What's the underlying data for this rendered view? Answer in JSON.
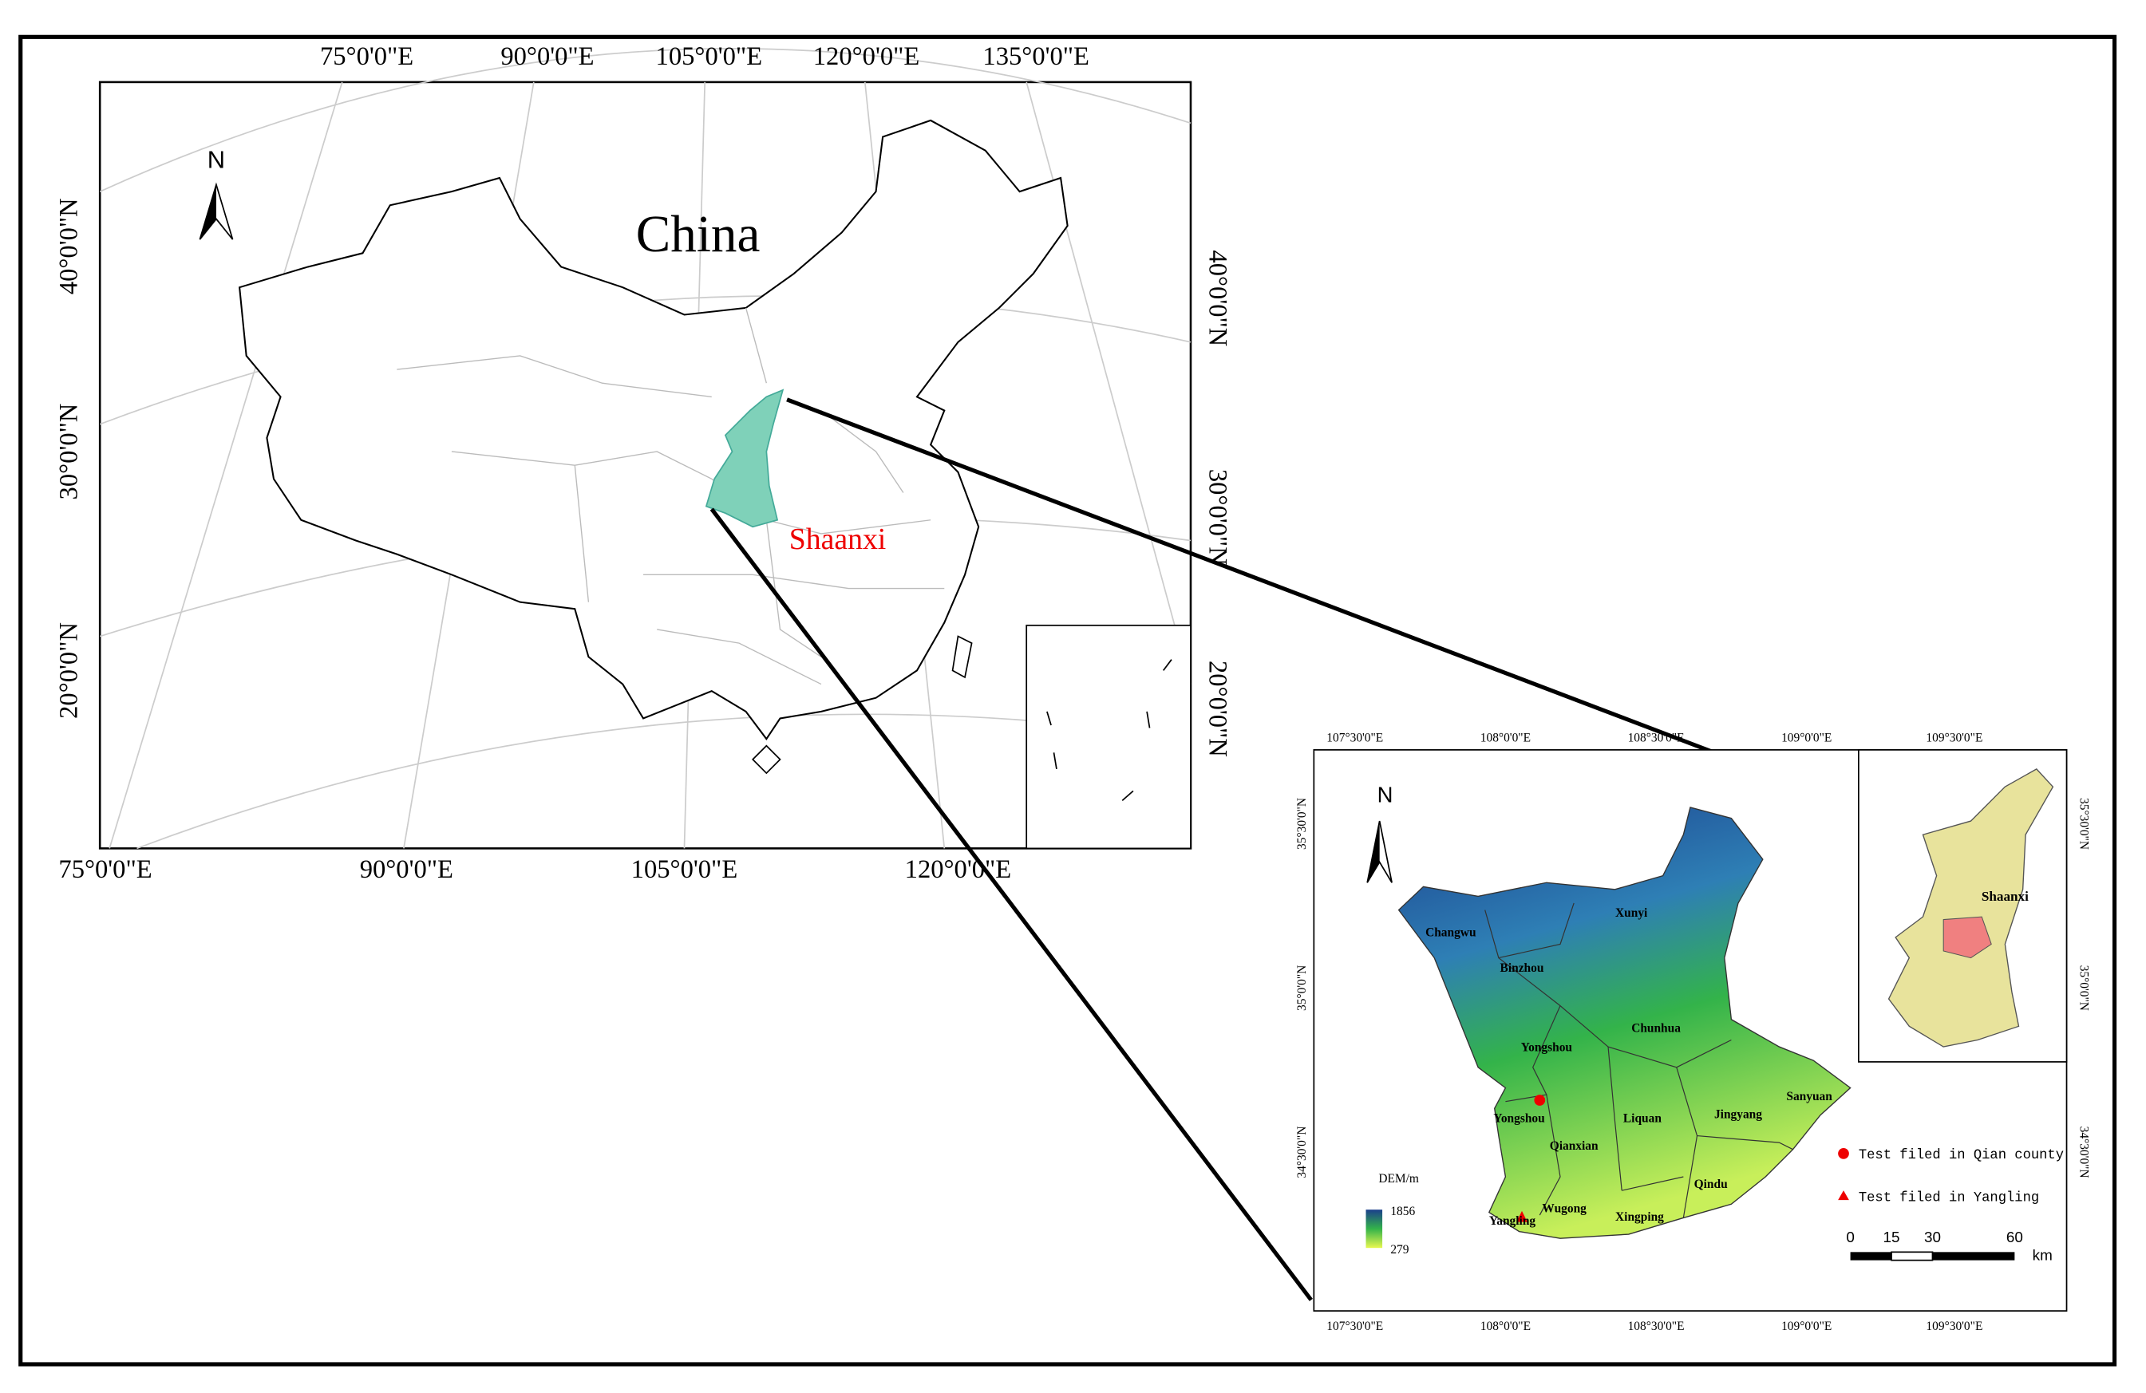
{
  "main_map": {
    "title": "China",
    "region_label": "Shaanxi",
    "north": "N",
    "top_lon_labels": [
      "75°0'0\"E",
      "90°0'0\"E",
      "105°0'0\"E",
      "120°0'0\"E",
      "135°0'0\"E"
    ],
    "bottom_lon_labels": [
      "75°0'0\"E",
      "90°0'0\"E",
      "105°0'0\"E",
      "120°0'0\"E"
    ],
    "left_lat_labels": [
      "40°0'0\"N",
      "30°0'0\"N",
      "20°0'0\"N"
    ],
    "right_lat_labels": [
      "40°0'0\"N",
      "30°0'0\"N",
      "20°0'0\"N"
    ]
  },
  "inset_map": {
    "north": "N",
    "province_label": "Shaanxi",
    "top_lon_labels": [
      "107°30'0\"E",
      "108°0'0\"E",
      "108°30'0\"E",
      "109°0'0\"E",
      "109°30'0\"E"
    ],
    "bottom_lon_labels": [
      "107°30'0\"E",
      "108°0'0\"E",
      "108°30'0\"E",
      "109°0'0\"E",
      "109°30'0\"E"
    ],
    "left_lat_labels": [
      "35°30'0\"N",
      "35°0'0\"N",
      "34°30'0\"N"
    ],
    "right_lat_labels": [
      "35°30'0\"N",
      "35°0'0\"N",
      "34°30'0\"N"
    ],
    "counties": [
      "Changwu",
      "Xunyi",
      "Binzhou",
      "Chunhua",
      "Yongshou",
      "Sanyuan",
      "Jingyang",
      "Liquan",
      "Yongshou",
      "Qianxian",
      "Qindu",
      "Wugong",
      "Xingping",
      "Yangling"
    ],
    "legend": {
      "title": "DEM/m",
      "max": "1856",
      "min": "279",
      "items": [
        "Test filed in Qian county",
        "Test filed in Yangling"
      ]
    },
    "scale_bar": {
      "labels": [
        "0",
        "15",
        "30",
        "60"
      ],
      "unit": "km"
    }
  }
}
